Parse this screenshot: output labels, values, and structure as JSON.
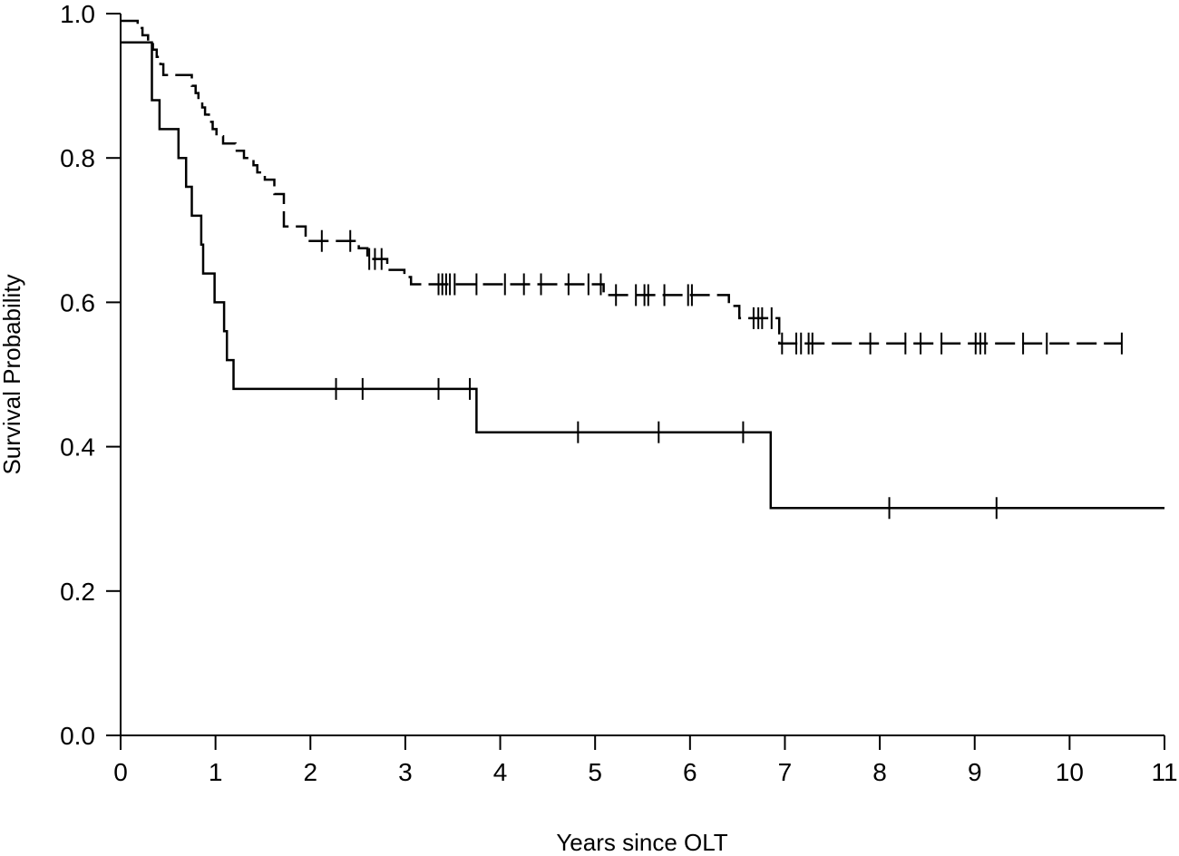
{
  "chart_data": {
    "type": "line",
    "subtype": "kaplan-meier",
    "title": "",
    "xlabel": "Years since OLT",
    "ylabel": "Survival Probability",
    "xlim": [
      0,
      11
    ],
    "ylim": [
      0,
      1
    ],
    "xticks": [
      "0",
      "1",
      "2",
      "3",
      "4",
      "5",
      "6",
      "7",
      "8",
      "9",
      "10",
      "11"
    ],
    "yticks": [
      "0.0",
      "0.2",
      "0.4",
      "0.6",
      "0.8",
      "1.0"
    ],
    "grid": false,
    "legend": "none",
    "series": [
      {
        "line_style": "solid",
        "color": "#000000",
        "steps": [
          [
            0,
            0.96
          ],
          [
            0.33,
            0.96
          ],
          [
            0.33,
            0.88
          ],
          [
            0.41,
            0.88
          ],
          [
            0.41,
            0.84
          ],
          [
            0.61,
            0.84
          ],
          [
            0.61,
            0.8
          ],
          [
            0.69,
            0.8
          ],
          [
            0.69,
            0.76
          ],
          [
            0.75,
            0.76
          ],
          [
            0.75,
            0.72
          ],
          [
            0.85,
            0.72
          ],
          [
            0.85,
            0.68
          ],
          [
            0.87,
            0.68
          ],
          [
            0.87,
            0.64
          ],
          [
            0.99,
            0.64
          ],
          [
            0.99,
            0.6
          ],
          [
            1.09,
            0.6
          ],
          [
            1.09,
            0.56
          ],
          [
            1.12,
            0.56
          ],
          [
            1.12,
            0.52
          ],
          [
            1.19,
            0.52
          ],
          [
            1.19,
            0.48
          ],
          [
            3.75,
            0.48
          ],
          [
            3.75,
            0.42
          ],
          [
            6.85,
            0.42
          ],
          [
            6.85,
            0.315
          ],
          [
            11,
            0.315
          ]
        ],
        "censored": [
          [
            2.27,
            0.48
          ],
          [
            2.55,
            0.48
          ],
          [
            3.35,
            0.48
          ],
          [
            3.68,
            0.48
          ],
          [
            4.82,
            0.42
          ],
          [
            5.67,
            0.42
          ],
          [
            6.56,
            0.42
          ],
          [
            8.1,
            0.315
          ],
          [
            9.23,
            0.315
          ]
        ]
      },
      {
        "line_style": "dashed",
        "color": "#000000",
        "steps": [
          [
            0,
            0.99
          ],
          [
            0.18,
            0.99
          ],
          [
            0.18,
            0.98
          ],
          [
            0.23,
            0.98
          ],
          [
            0.23,
            0.97
          ],
          [
            0.29,
            0.97
          ],
          [
            0.29,
            0.96
          ],
          [
            0.34,
            0.96
          ],
          [
            0.34,
            0.95
          ],
          [
            0.38,
            0.95
          ],
          [
            0.38,
            0.94
          ],
          [
            0.42,
            0.94
          ],
          [
            0.42,
            0.93
          ],
          [
            0.45,
            0.93
          ],
          [
            0.45,
            0.915
          ],
          [
            0.75,
            0.915
          ],
          [
            0.75,
            0.9
          ],
          [
            0.79,
            0.9
          ],
          [
            0.79,
            0.89
          ],
          [
            0.82,
            0.89
          ],
          [
            0.82,
            0.88
          ],
          [
            0.86,
            0.88
          ],
          [
            0.86,
            0.87
          ],
          [
            0.89,
            0.87
          ],
          [
            0.89,
            0.86
          ],
          [
            0.93,
            0.86
          ],
          [
            0.93,
            0.85
          ],
          [
            0.97,
            0.85
          ],
          [
            0.97,
            0.84
          ],
          [
            1.01,
            0.84
          ],
          [
            1.01,
            0.83
          ],
          [
            1.08,
            0.83
          ],
          [
            1.08,
            0.82
          ],
          [
            1.21,
            0.82
          ],
          [
            1.21,
            0.81
          ],
          [
            1.3,
            0.81
          ],
          [
            1.3,
            0.8
          ],
          [
            1.4,
            0.8
          ],
          [
            1.4,
            0.79
          ],
          [
            1.44,
            0.79
          ],
          [
            1.44,
            0.78
          ],
          [
            1.52,
            0.78
          ],
          [
            1.52,
            0.77
          ],
          [
            1.62,
            0.77
          ],
          [
            1.62,
            0.75
          ],
          [
            1.72,
            0.75
          ],
          [
            1.72,
            0.705
          ],
          [
            1.95,
            0.705
          ],
          [
            1.95,
            0.685
          ],
          [
            2.51,
            0.685
          ],
          [
            2.51,
            0.675
          ],
          [
            2.6,
            0.675
          ],
          [
            2.6,
            0.66
          ],
          [
            2.81,
            0.66
          ],
          [
            2.81,
            0.645
          ],
          [
            2.99,
            0.645
          ],
          [
            2.99,
            0.635
          ],
          [
            3.06,
            0.635
          ],
          [
            3.06,
            0.625
          ],
          [
            5.09,
            0.625
          ],
          [
            5.09,
            0.61
          ],
          [
            6.41,
            0.61
          ],
          [
            6.41,
            0.595
          ],
          [
            6.52,
            0.595
          ],
          [
            6.52,
            0.578
          ],
          [
            6.94,
            0.578
          ],
          [
            6.94,
            0.543
          ],
          [
            10.55,
            0.543
          ]
        ],
        "censored": [
          [
            2.12,
            0.685
          ],
          [
            2.42,
            0.685
          ],
          [
            2.62,
            0.66
          ],
          [
            2.68,
            0.66
          ],
          [
            2.75,
            0.66
          ],
          [
            3.35,
            0.625
          ],
          [
            3.39,
            0.625
          ],
          [
            3.43,
            0.625
          ],
          [
            3.47,
            0.625
          ],
          [
            3.52,
            0.625
          ],
          [
            3.75,
            0.625
          ],
          [
            4.05,
            0.625
          ],
          [
            4.25,
            0.625
          ],
          [
            4.43,
            0.625
          ],
          [
            4.72,
            0.625
          ],
          [
            4.93,
            0.625
          ],
          [
            5.06,
            0.625
          ],
          [
            5.22,
            0.61
          ],
          [
            5.43,
            0.61
          ],
          [
            5.52,
            0.61
          ],
          [
            5.56,
            0.61
          ],
          [
            5.73,
            0.61
          ],
          [
            5.98,
            0.61
          ],
          [
            6.02,
            0.61
          ],
          [
            6.67,
            0.578
          ],
          [
            6.72,
            0.578
          ],
          [
            6.76,
            0.578
          ],
          [
            6.86,
            0.578
          ],
          [
            6.97,
            0.543
          ],
          [
            7.12,
            0.543
          ],
          [
            7.17,
            0.543
          ],
          [
            7.25,
            0.543
          ],
          [
            7.29,
            0.543
          ],
          [
            7.9,
            0.543
          ],
          [
            8.27,
            0.543
          ],
          [
            8.43,
            0.543
          ],
          [
            8.65,
            0.543
          ],
          [
            9.01,
            0.543
          ],
          [
            9.06,
            0.543
          ],
          [
            9.11,
            0.543
          ],
          [
            9.51,
            0.543
          ],
          [
            9.76,
            0.543
          ],
          [
            10.55,
            0.543
          ]
        ]
      }
    ]
  }
}
